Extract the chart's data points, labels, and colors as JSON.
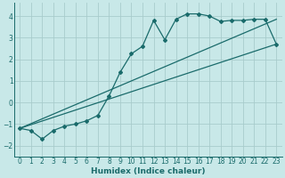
{
  "xlabel": "Humidex (Indice chaleur)",
  "bg_color": "#c8e8e8",
  "grid_color": "#a8cccc",
  "line_color": "#1a6b6b",
  "xlim": [
    -0.5,
    23.5
  ],
  "ylim": [
    -2.5,
    4.6
  ],
  "xticks": [
    0,
    1,
    2,
    3,
    4,
    5,
    6,
    7,
    8,
    9,
    10,
    11,
    12,
    13,
    14,
    15,
    16,
    17,
    18,
    19,
    20,
    21,
    22,
    23
  ],
  "yticks": [
    -2,
    -1,
    0,
    1,
    2,
    3,
    4
  ],
  "line1_x": [
    0,
    1,
    2,
    3,
    4,
    5,
    6,
    7,
    8,
    9,
    10,
    11,
    12,
    13,
    14,
    15,
    16,
    17,
    18,
    19,
    20,
    21,
    22,
    23
  ],
  "line1_y": [
    -1.2,
    -1.3,
    -1.7,
    -1.3,
    -1.1,
    -1.0,
    -0.85,
    -0.6,
    0.3,
    1.4,
    2.25,
    2.6,
    3.8,
    2.9,
    3.85,
    4.1,
    4.1,
    4.0,
    3.75,
    3.8,
    3.8,
    3.85,
    3.85,
    2.7
  ],
  "line2_x": [
    0,
    23
  ],
  "line2_y": [
    -1.2,
    2.7
  ],
  "line3_x": [
    0,
    23
  ],
  "line3_y": [
    -1.2,
    3.85
  ]
}
